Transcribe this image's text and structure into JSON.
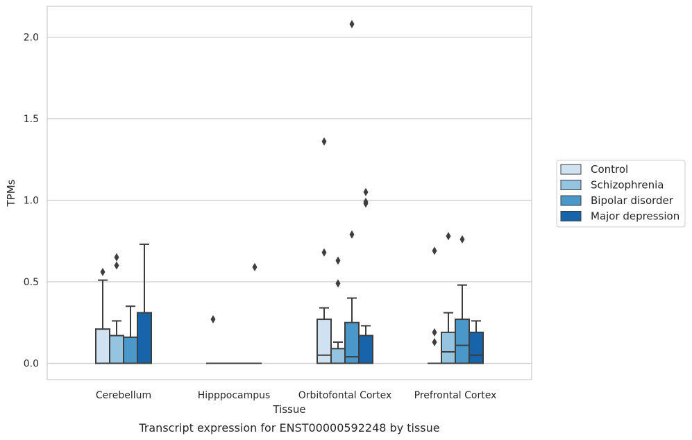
{
  "caption": "Transcript expression for ENST00000592248 by tissue",
  "chart_data": {
    "type": "box",
    "xlabel": "Tissue",
    "ylabel": "TPMs",
    "ylim": [
      -0.1,
      2.19
    ],
    "yticks": [
      "0.0",
      "0.5",
      "1.0",
      "1.5",
      "2.0"
    ],
    "grid": "horizontal",
    "legend_position": "right",
    "categories": [
      "Cerebellum",
      "Hipppocampus",
      "Orbitofontal Cortex",
      "Prefrontal Cortex"
    ],
    "series": [
      {
        "name": "Control",
        "color": "#d0e1f2",
        "boxes": [
          {
            "q1": 0,
            "median": 0,
            "q3": 0.21,
            "whisker_low": 0,
            "whisker_high": 0.51,
            "outliers": [
              0.56
            ]
          },
          {
            "q1": 0,
            "median": 0,
            "q3": 0,
            "whisker_low": 0,
            "whisker_high": 0,
            "outliers": [
              0.27
            ]
          },
          {
            "q1": 0,
            "median": 0.05,
            "q3": 0.27,
            "whisker_low": 0,
            "whisker_high": 0.34,
            "outliers": [
              0.68,
              1.36
            ]
          },
          {
            "q1": 0,
            "median": 0,
            "q3": 0,
            "whisker_low": 0,
            "whisker_high": 0,
            "outliers": [
              0.13,
              0.19,
              0.69
            ]
          }
        ]
      },
      {
        "name": "Schizophrenia",
        "color": "#94c4df",
        "boxes": [
          {
            "q1": 0,
            "median": 0,
            "q3": 0.17,
            "whisker_low": 0,
            "whisker_high": 0.26,
            "outliers": [
              0.6,
              0.65
            ]
          },
          {
            "q1": 0,
            "median": 0,
            "q3": 0,
            "whisker_low": 0,
            "whisker_high": 0,
            "outliers": []
          },
          {
            "q1": 0,
            "median": 0,
            "q3": 0.09,
            "whisker_low": 0,
            "whisker_high": 0.13,
            "outliers": [
              0.49,
              0.63
            ]
          },
          {
            "q1": 0,
            "median": 0.07,
            "q3": 0.19,
            "whisker_low": 0,
            "whisker_high": 0.31,
            "outliers": [
              0.78
            ]
          }
        ]
      },
      {
        "name": "Bipolar disorder",
        "color": "#4a98c9",
        "boxes": [
          {
            "q1": 0,
            "median": 0,
            "q3": 0.16,
            "whisker_low": 0,
            "whisker_high": 0.35,
            "outliers": []
          },
          {
            "q1": 0,
            "median": 0,
            "q3": 0,
            "whisker_low": 0,
            "whisker_high": 0,
            "outliers": []
          },
          {
            "q1": 0,
            "median": 0.04,
            "q3": 0.25,
            "whisker_low": 0,
            "whisker_high": 0.4,
            "outliers": [
              0.79,
              2.08
            ]
          },
          {
            "q1": 0,
            "median": 0.11,
            "q3": 0.27,
            "whisker_low": 0,
            "whisker_high": 0.48,
            "outliers": [
              0.76
            ]
          }
        ]
      },
      {
        "name": "Major depression",
        "color": "#1764ab",
        "boxes": [
          {
            "q1": 0,
            "median": 0,
            "q3": 0.31,
            "whisker_low": 0,
            "whisker_high": 0.73,
            "outliers": []
          },
          {
            "q1": 0,
            "median": 0,
            "q3": 0,
            "whisker_low": 0,
            "whisker_high": 0,
            "outliers": [
              0.59
            ]
          },
          {
            "q1": 0,
            "median": 0,
            "q3": 0.17,
            "whisker_low": 0,
            "whisker_high": 0.23,
            "outliers": [
              0.98,
              0.99,
              1.05
            ]
          },
          {
            "q1": 0,
            "median": 0.05,
            "q3": 0.19,
            "whisker_low": 0,
            "whisker_high": 0.26,
            "outliers": []
          }
        ]
      }
    ]
  }
}
